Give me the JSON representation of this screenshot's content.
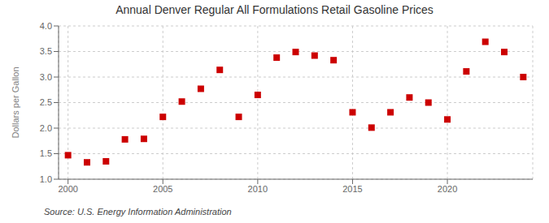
{
  "chart_data": {
    "type": "scatter",
    "title": "Annual Denver Regular All Formulations Retail Gasoline Prices",
    "y_label": "Dollars per Gallon",
    "annotations": [
      "Source: U.S. Energy Information Administration"
    ],
    "x": [
      2000,
      2001,
      2002,
      2003,
      2004,
      2005,
      2006,
      2007,
      2008,
      2009,
      2010,
      2011,
      2012,
      2013,
      2014,
      2015,
      2016,
      2017,
      2018,
      2019,
      2020,
      2021,
      2022,
      2023,
      2024
    ],
    "values": [
      1.47,
      1.33,
      1.35,
      1.78,
      1.79,
      2.22,
      2.52,
      2.77,
      3.14,
      2.22,
      2.65,
      3.38,
      3.49,
      3.42,
      3.33,
      2.31,
      2.01,
      2.31,
      2.6,
      2.5,
      2.17,
      3.11,
      3.69,
      3.49,
      3.0
    ],
    "color": "#cc0000",
    "marker": "square",
    "xlim": [
      1999.5,
      2024.5
    ],
    "ylim": [
      1.0,
      4.0
    ],
    "xticks": [
      2000,
      2005,
      2010,
      2015,
      2020
    ],
    "yticks": [
      {
        "value": 1.0,
        "label": "1.0"
      },
      1.5,
      {
        "value": 2.0,
        "label": "2.0"
      },
      2.5,
      {
        "value": 3.0,
        "label": "3.0"
      },
      3.5,
      {
        "value": 4.0,
        "label": "4.0"
      }
    ],
    "grid": true
  }
}
